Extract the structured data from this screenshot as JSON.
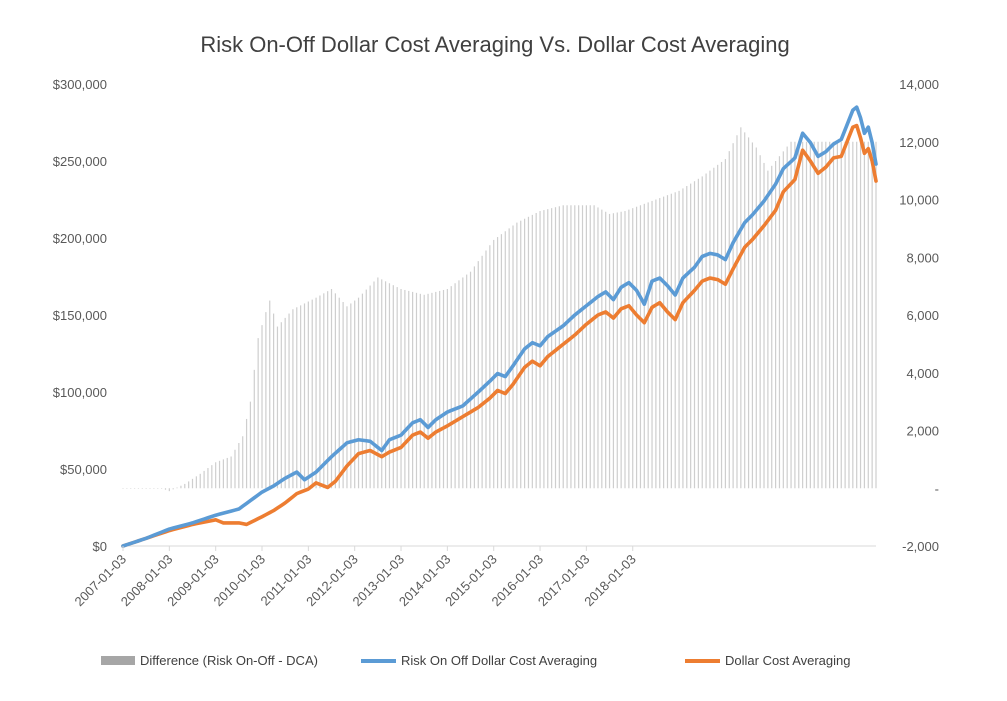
{
  "chart_data": {
    "type": "line",
    "title": "Risk On-Off Dollar Cost Averaging Vs. Dollar Cost Averaging",
    "x_ticks": [
      "2007-01-03",
      "2008-01-03",
      "2009-01-03",
      "2010-01-03",
      "2011-01-03",
      "2012-01-03",
      "2013-01-03",
      "2014-01-03",
      "2015-01-03",
      "2016-01-03",
      "2017-01-03",
      "2018-01-03"
    ],
    "x_range": [
      "2007-01-03",
      "2018-12-03"
    ],
    "y_left": {
      "range": [
        0,
        300000
      ],
      "ticks": [
        0,
        50000,
        100000,
        150000,
        200000,
        250000,
        300000
      ],
      "tick_labels": [
        "$0",
        "$50,000",
        "$100,000",
        "$150,000",
        "$200,000",
        "$250,000",
        "$300,000"
      ]
    },
    "y_right": {
      "range": [
        -2000,
        14000
      ],
      "ticks": [
        -2000,
        0,
        2000,
        4000,
        6000,
        8000,
        10000,
        12000,
        14000
      ],
      "tick_labels": [
        "-2,000",
        "-",
        "2,000",
        "4,000",
        "6,000",
        "8,000",
        "10,000",
        "12,000",
        "14,000"
      ]
    },
    "legend_position": "bottom",
    "series": [
      {
        "name": "Difference (Risk On-Off - DCA)",
        "type": "bar",
        "axis": "right",
        "color": "#a6a6a6",
        "keyframes": [
          [
            0,
            0
          ],
          [
            10,
            0
          ],
          [
            12,
            -100
          ],
          [
            16,
            150
          ],
          [
            20,
            500
          ],
          [
            24,
            900
          ],
          [
            28,
            1100
          ],
          [
            31,
            1800
          ],
          [
            33,
            3000
          ],
          [
            35,
            5200
          ],
          [
            37,
            6100
          ],
          [
            38,
            6500
          ],
          [
            40,
            5600
          ],
          [
            44,
            6200
          ],
          [
            50,
            6600
          ],
          [
            54,
            6900
          ],
          [
            58,
            6300
          ],
          [
            61,
            6600
          ],
          [
            66,
            7300
          ],
          [
            72,
            6900
          ],
          [
            78,
            6700
          ],
          [
            84,
            6900
          ],
          [
            90,
            7500
          ],
          [
            96,
            8600
          ],
          [
            102,
            9200
          ],
          [
            108,
            9600
          ],
          [
            114,
            9800
          ],
          [
            122,
            9800
          ],
          [
            126,
            9500
          ],
          [
            130,
            9600
          ],
          [
            138,
            10000
          ],
          [
            144,
            10300
          ],
          [
            150,
            10800
          ],
          [
            156,
            11400
          ],
          [
            160,
            12500
          ],
          [
            164,
            11800
          ],
          [
            167,
            11000
          ],
          [
            170,
            11500
          ],
          [
            173,
            12000
          ]
        ]
      },
      {
        "name": "Risk On Off Dollar Cost Averaging",
        "type": "line",
        "axis": "left",
        "color": "#5b9bd5",
        "keyframes": [
          [
            0,
            0
          ],
          [
            6,
            5000
          ],
          [
            12,
            11000
          ],
          [
            18,
            15000
          ],
          [
            24,
            20000
          ],
          [
            30,
            24000
          ],
          [
            36,
            35000
          ],
          [
            39,
            39000
          ],
          [
            42,
            44000
          ],
          [
            45,
            48000
          ],
          [
            47,
            43000
          ],
          [
            50,
            48000
          ],
          [
            54,
            58000
          ],
          [
            58,
            67000
          ],
          [
            61,
            69000
          ],
          [
            64,
            68000
          ],
          [
            67,
            62000
          ],
          [
            69,
            69000
          ],
          [
            72,
            72000
          ],
          [
            75,
            80000
          ],
          [
            77,
            82000
          ],
          [
            79,
            77000
          ],
          [
            81,
            82000
          ],
          [
            84,
            87000
          ],
          [
            88,
            91000
          ],
          [
            92,
            100000
          ],
          [
            95,
            107000
          ],
          [
            97,
            112000
          ],
          [
            99,
            110000
          ],
          [
            101,
            117000
          ],
          [
            104,
            128000
          ],
          [
            106,
            132000
          ],
          [
            108,
            130000
          ],
          [
            110,
            136000
          ],
          [
            114,
            143000
          ],
          [
            117,
            150000
          ],
          [
            120,
            156000
          ],
          [
            123,
            162000
          ],
          [
            125,
            165000
          ],
          [
            127,
            160000
          ],
          [
            129,
            168000
          ],
          [
            131,
            171000
          ],
          [
            133,
            166000
          ],
          [
            135,
            157000
          ],
          [
            137,
            172000
          ],
          [
            139,
            174000
          ],
          [
            141,
            169000
          ],
          [
            143,
            163000
          ],
          [
            145,
            174000
          ],
          [
            148,
            181000
          ],
          [
            150,
            188000
          ],
          [
            152,
            190000
          ],
          [
            154,
            189000
          ],
          [
            156,
            186000
          ],
          [
            158,
            197000
          ],
          [
            161,
            210000
          ],
          [
            163,
            215000
          ],
          [
            166,
            224000
          ],
          [
            169,
            235000
          ],
          [
            171,
            245000
          ],
          [
            174,
            252000
          ],
          [
            176,
            268000
          ],
          [
            178,
            262000
          ],
          [
            180,
            253000
          ],
          [
            182,
            256000
          ],
          [
            184,
            261000
          ],
          [
            186,
            264000
          ],
          [
            189,
            283000
          ],
          [
            190,
            285000
          ],
          [
            191,
            278000
          ],
          [
            192,
            268000
          ],
          [
            193,
            272000
          ],
          [
            194,
            262000
          ],
          [
            195,
            248000
          ]
        ]
      },
      {
        "name": "Dollar Cost Averaging",
        "type": "line",
        "axis": "left",
        "color": "#ed7d31",
        "keyframes": [
          [
            0,
            0
          ],
          [
            6,
            5000
          ],
          [
            12,
            10000
          ],
          [
            18,
            14000
          ],
          [
            24,
            17000
          ],
          [
            26,
            15000
          ],
          [
            28,
            15000
          ],
          [
            30,
            15000
          ],
          [
            32,
            14000
          ],
          [
            36,
            19000
          ],
          [
            39,
            23000
          ],
          [
            42,
            28000
          ],
          [
            45,
            34000
          ],
          [
            48,
            37000
          ],
          [
            50,
            41000
          ],
          [
            53,
            38000
          ],
          [
            55,
            42000
          ],
          [
            58,
            52000
          ],
          [
            61,
            60000
          ],
          [
            64,
            62000
          ],
          [
            67,
            58000
          ],
          [
            69,
            61000
          ],
          [
            72,
            64000
          ],
          [
            75,
            72000
          ],
          [
            77,
            74000
          ],
          [
            79,
            70000
          ],
          [
            81,
            74000
          ],
          [
            84,
            78000
          ],
          [
            88,
            84000
          ],
          [
            92,
            90000
          ],
          [
            95,
            96000
          ],
          [
            97,
            101000
          ],
          [
            99,
            99000
          ],
          [
            101,
            105000
          ],
          [
            104,
            116000
          ],
          [
            106,
            120000
          ],
          [
            108,
            117000
          ],
          [
            110,
            123000
          ],
          [
            114,
            131000
          ],
          [
            117,
            137000
          ],
          [
            120,
            144000
          ],
          [
            123,
            150000
          ],
          [
            125,
            152000
          ],
          [
            127,
            148000
          ],
          [
            129,
            154000
          ],
          [
            131,
            156000
          ],
          [
            133,
            150000
          ],
          [
            135,
            145000
          ],
          [
            137,
            155000
          ],
          [
            139,
            158000
          ],
          [
            141,
            152000
          ],
          [
            143,
            147000
          ],
          [
            145,
            158000
          ],
          [
            148,
            166000
          ],
          [
            150,
            172000
          ],
          [
            152,
            174000
          ],
          [
            154,
            173000
          ],
          [
            156,
            170000
          ],
          [
            158,
            180000
          ],
          [
            161,
            194000
          ],
          [
            163,
            199000
          ],
          [
            166,
            208000
          ],
          [
            169,
            218000
          ],
          [
            171,
            230000
          ],
          [
            174,
            238000
          ],
          [
            176,
            257000
          ],
          [
            178,
            250000
          ],
          [
            180,
            242000
          ],
          [
            182,
            246000
          ],
          [
            184,
            252000
          ],
          [
            186,
            253000
          ],
          [
            189,
            272000
          ],
          [
            190,
            273000
          ],
          [
            191,
            265000
          ],
          [
            192,
            255000
          ],
          [
            193,
            258000
          ],
          [
            194,
            250000
          ],
          [
            195,
            237000
          ]
        ]
      }
    ],
    "colors": {
      "difference": "#a6a6a6",
      "risk_on_off": "#5b9bd5",
      "dca": "#ed7d31",
      "axis": "#d9d9d9",
      "text": "#595959"
    }
  }
}
